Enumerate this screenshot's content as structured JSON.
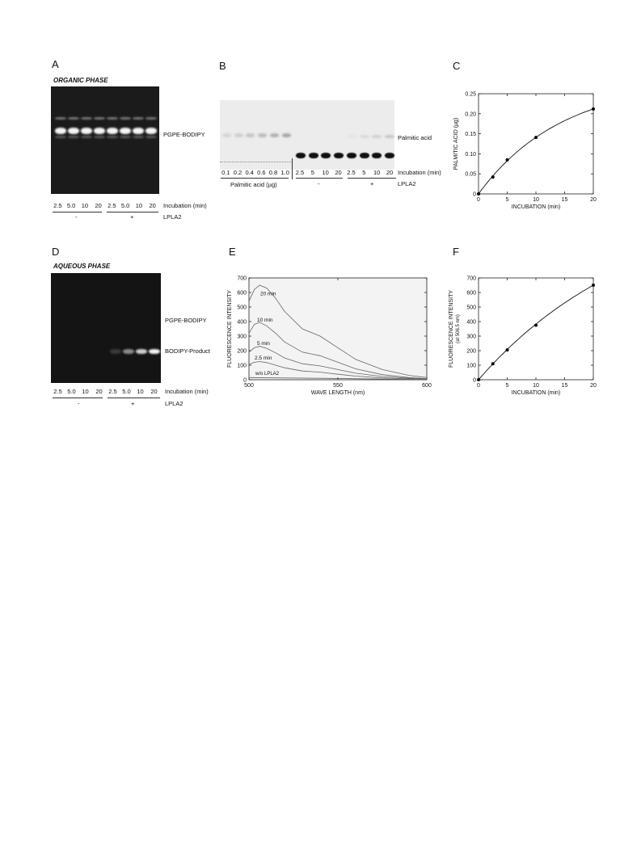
{
  "panels": {
    "A": {
      "letter": "A",
      "title": "ORGANIC PHASE",
      "band_label": "PGPE-BODIPY",
      "lanes": [
        "2.5",
        "5.0",
        "10",
        "20",
        "2.5",
        "5.0",
        "10",
        "20"
      ],
      "row_label": "Incubation (min)",
      "groups": [
        "-",
        "+"
      ],
      "group_label": "LPLA2"
    },
    "B": {
      "letter": "B",
      "band_label": "Palmitic acid",
      "standards": [
        "0.1",
        "0.2",
        "0.4",
        "0.6",
        "0.8",
        "1.0"
      ],
      "standards_label": "Palmitic acid (µg)",
      "lanes": [
        "2.5",
        "5",
        "10",
        "20",
        "2.5",
        "5",
        "10",
        "20"
      ],
      "row_label": "Incubation (min)",
      "groups": [
        "-",
        "+"
      ],
      "group_label": "LPLA2"
    },
    "D": {
      "letter": "D",
      "title": "AQUEOUS PHASE",
      "band_label_top": "PGPE-BODIPY",
      "band_label_bottom": "BODIPY-Product",
      "lanes": [
        "2.5",
        "5.0",
        "10",
        "20",
        "2.5",
        "5.0",
        "10",
        "20"
      ],
      "row_label": "Incubation (min)",
      "groups": [
        "-",
        "+"
      ],
      "group_label": "LPLA2"
    }
  },
  "chart_data": [
    {
      "id": "C",
      "letter": "C",
      "type": "scatter",
      "xlabel": "INCUBATION (min)",
      "ylabel": "PALMITIC ACID (µg)",
      "xlim": [
        0,
        20
      ],
      "ylim": [
        0,
        0.25
      ],
      "xticks": [
        "0",
        "5",
        "10",
        "15",
        "20"
      ],
      "yticks": [
        "0",
        "0.05",
        "0.10",
        "0.15",
        "0.20",
        "0.25"
      ],
      "series": [
        {
          "x": [
            0,
            2.5,
            5,
            10,
            20
          ],
          "y": [
            0,
            0.042,
            0.085,
            0.141,
            0.212
          ]
        }
      ]
    },
    {
      "id": "E",
      "letter": "E",
      "type": "line",
      "xlabel": "WAVE LENGTH (nm)",
      "ylabel": "FLUORESCENCE INTENSITY",
      "xlim": [
        500,
        600
      ],
      "ylim": [
        0,
        700
      ],
      "xticks": [
        "500",
        "550",
        "600"
      ],
      "yticks": [
        "0",
        "100",
        "200",
        "300",
        "400",
        "500",
        "600",
        "700"
      ],
      "series": [
        {
          "name": "20 min",
          "x": [
            500,
            503,
            506,
            510,
            515,
            520,
            530,
            540,
            550,
            560,
            575,
            590,
            600
          ],
          "y": [
            540,
            620,
            650,
            630,
            560,
            470,
            350,
            300,
            220,
            140,
            70,
            30,
            15
          ]
        },
        {
          "name": "10 min",
          "x": [
            500,
            503,
            506,
            510,
            515,
            520,
            530,
            540,
            550,
            560,
            575,
            590,
            600
          ],
          "y": [
            320,
            380,
            395,
            370,
            320,
            260,
            190,
            165,
            120,
            75,
            35,
            15,
            8
          ]
        },
        {
          "name": "5 min",
          "x": [
            500,
            503,
            506,
            510,
            515,
            520,
            530,
            540,
            550,
            560,
            575,
            590,
            600
          ],
          "y": [
            190,
            220,
            230,
            215,
            185,
            150,
            110,
            95,
            70,
            45,
            22,
            10,
            5
          ]
        },
        {
          "name": "2.5 min",
          "x": [
            500,
            503,
            506,
            510,
            515,
            520,
            530,
            540,
            550,
            560,
            575,
            590,
            600
          ],
          "y": [
            105,
            120,
            125,
            118,
            100,
            82,
            60,
            52,
            38,
            25,
            12,
            6,
            3
          ]
        },
        {
          "name": "w/o LPLA2",
          "x": [
            500,
            520,
            540,
            560,
            580,
            600
          ],
          "y": [
            15,
            12,
            10,
            7,
            4,
            2
          ]
        }
      ]
    },
    {
      "id": "F",
      "letter": "F",
      "type": "scatter",
      "xlabel": "INCUBATION (min)",
      "ylabel": "FLUORESCENCE INTENSITY",
      "ylabel2": "(at 506.5 nm)",
      "xlim": [
        0,
        20
      ],
      "ylim": [
        0,
        700
      ],
      "xticks": [
        "0",
        "5",
        "10",
        "15",
        "20"
      ],
      "yticks": [
        "0",
        "100",
        "200",
        "300",
        "400",
        "500",
        "600",
        "700"
      ],
      "series": [
        {
          "x": [
            0,
            2.5,
            5,
            10,
            20
          ],
          "y": [
            0,
            110,
            205,
            375,
            650
          ]
        }
      ]
    }
  ]
}
